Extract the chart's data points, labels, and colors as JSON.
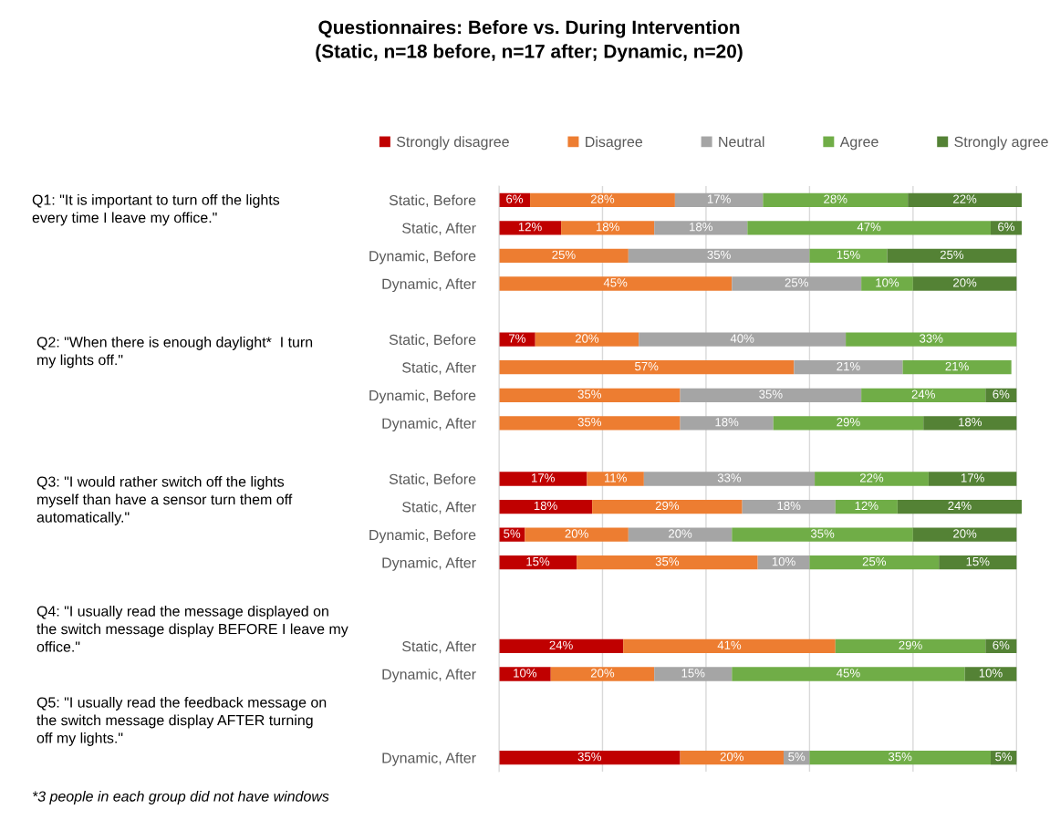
{
  "chart_data": {
    "type": "bar",
    "orientation": "horizontal",
    "stacked": true,
    "title": "Questionnaires: Before vs. During Intervention\n(Static, n=18 before, n=17 after; Dynamic, n=20)",
    "categories": [
      "Static, Before",
      "Static, After",
      "Dynamic, Before",
      "Dynamic, After",
      null,
      "Static, Before",
      "Static, After",
      "Dynamic, Before",
      "Dynamic, After",
      null,
      "Static, Before",
      "Static, After",
      "Dynamic, Before",
      "Dynamic, After",
      null,
      null,
      "Static, After",
      "Dynamic, After",
      null,
      null,
      "Dynamic, After"
    ],
    "series": [
      {
        "name": "Strongly disagree",
        "color": "#c00000",
        "values": [
          6,
          12,
          null,
          null,
          null,
          7,
          null,
          null,
          null,
          null,
          17,
          18,
          5,
          15,
          null,
          null,
          24,
          10,
          null,
          null,
          35
        ],
        "value_labels": [
          "6%",
          "12%",
          null,
          null,
          null,
          "7%",
          null,
          null,
          null,
          null,
          "17%",
          "18%",
          "5%",
          "15%",
          null,
          null,
          "24%",
          "10%",
          null,
          null,
          "35%"
        ]
      },
      {
        "name": "Disagree",
        "color": "#ed7d31",
        "values": [
          28,
          18,
          25,
          45,
          null,
          20,
          57,
          35,
          35,
          null,
          11,
          29,
          20,
          35,
          null,
          null,
          41,
          20,
          null,
          null,
          20
        ],
        "value_labels": [
          "28%",
          "18%",
          "25%",
          "45%",
          null,
          "20%",
          "57%",
          "35%",
          "35%",
          null,
          "11%",
          "29%",
          "20%",
          "35%",
          null,
          null,
          "41%",
          "20%",
          null,
          null,
          "20%"
        ]
      },
      {
        "name": "Neutral",
        "color": "#a5a5a5",
        "values": [
          17,
          18,
          35,
          25,
          null,
          40,
          21,
          35,
          18,
          null,
          33,
          18,
          20,
          10,
          null,
          null,
          null,
          15,
          null,
          null,
          5
        ],
        "value_labels": [
          "17%",
          "18%",
          "35%",
          "25%",
          null,
          "40%",
          "21%",
          "35%",
          "18%",
          null,
          "33%",
          "18%",
          "20%",
          "10%",
          null,
          null,
          null,
          "15%",
          null,
          null,
          "5%"
        ]
      },
      {
        "name": "Agree",
        "color": "#70ad47",
        "values": [
          28,
          47,
          15,
          10,
          null,
          33,
          21,
          24,
          29,
          null,
          22,
          12,
          35,
          25,
          null,
          null,
          29,
          45,
          null,
          null,
          35
        ],
        "value_labels": [
          "28%",
          "47%",
          "15%",
          "10%",
          null,
          "33%",
          "21%",
          "24%",
          "29%",
          null,
          "22%",
          "12%",
          "35%",
          "25%",
          null,
          null,
          "29%",
          "45%",
          null,
          null,
          "35%"
        ]
      },
      {
        "name": "Strongly agree",
        "color": "#548235",
        "values": [
          22,
          6,
          25,
          20,
          null,
          null,
          null,
          6,
          18,
          null,
          17,
          24,
          20,
          15,
          null,
          null,
          6,
          10,
          null,
          null,
          5
        ],
        "value_labels": [
          "22%",
          "6%",
          "25%",
          "20%",
          null,
          null,
          null,
          "6%",
          "18%",
          null,
          "17%",
          "24%",
          "20%",
          "15%",
          null,
          null,
          "6%",
          "10%",
          null,
          null,
          "5%"
        ]
      }
    ],
    "xlim": [
      0,
      101
    ],
    "xticks": [
      {
        "value": 0,
        "label": null
      },
      {
        "value": 20,
        "label": null
      },
      {
        "value": 40,
        "label": null
      },
      {
        "value": 60,
        "label": null
      },
      {
        "value": 80,
        "label": null
      },
      {
        "value": 100,
        "label": null
      }
    ],
    "tick_labels": "y",
    "grid": "x",
    "legend": "top",
    "annotations": [
      "Q1: \"It is important to turn off the lights\nevery time I leave my office.\"",
      "Q2: \"When there is enough daylight*  I turn\nmy lights off.\"",
      "Q3: \"I would rather switch off the lights\nmyself than have a sensor turn them off\nautomatically.\"",
      "Q4: \"I usually read the message displayed on\nthe switch message display BEFORE I leave my\noffice.\"",
      "Q5: \"I usually read the feedback message on\nthe switch message display AFTER turning\noff my lights.\"",
      "*3 people in each group did not have windows"
    ]
  }
}
